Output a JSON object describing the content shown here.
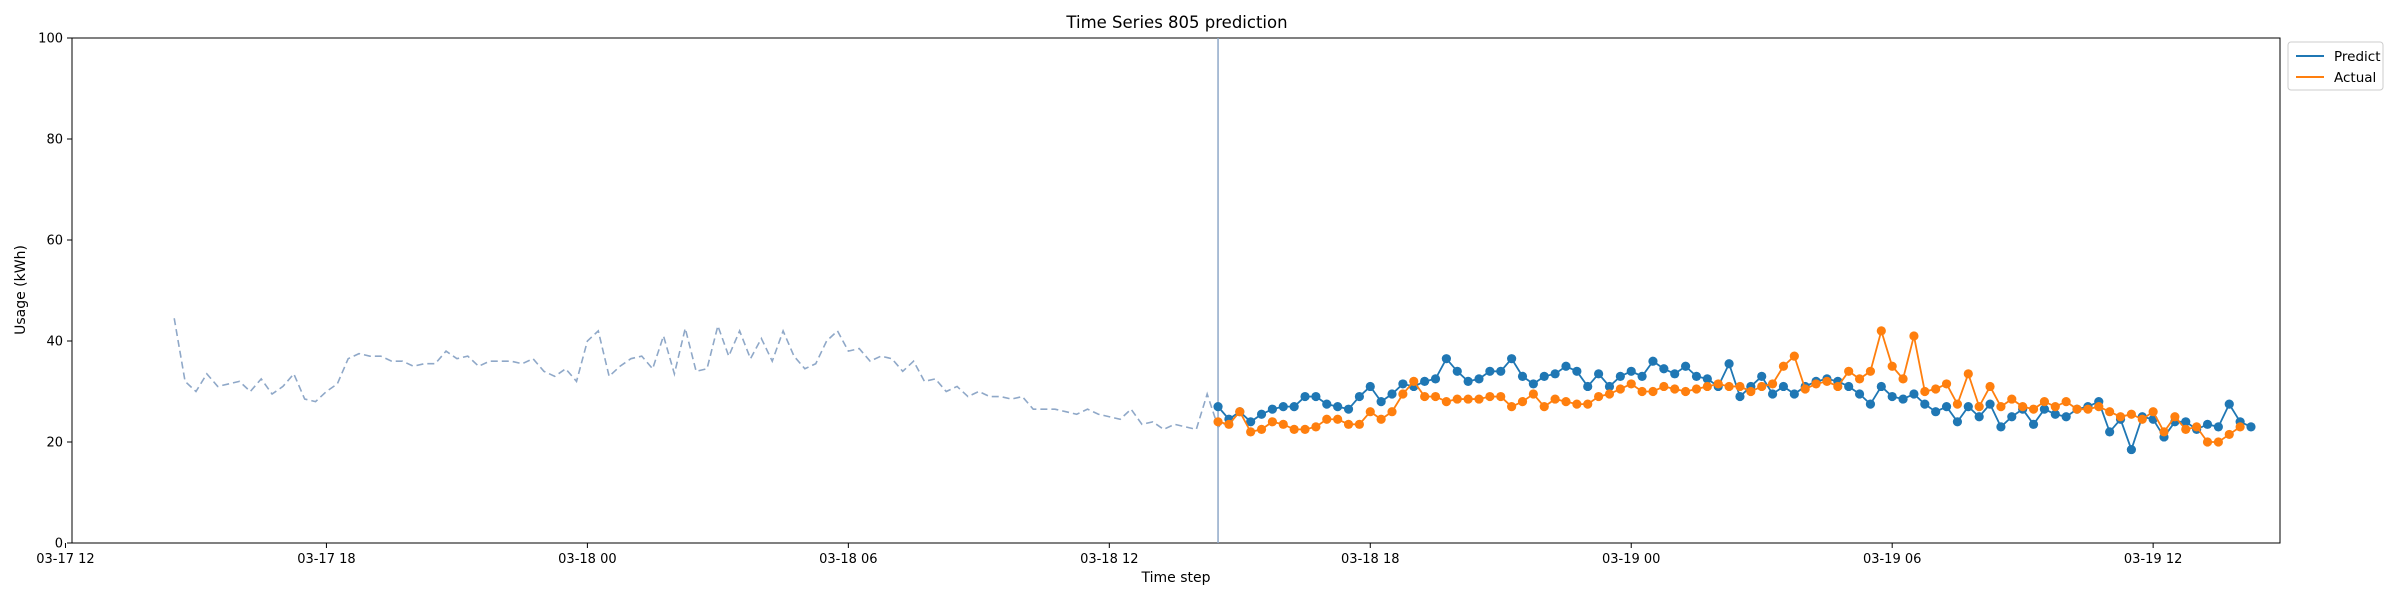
{
  "chart_data": {
    "type": "line",
    "title": "Time Series 805 prediction",
    "xlabel": "Time step",
    "ylabel": "Usage (kWh)",
    "ylim": [
      0,
      100
    ],
    "yticks": [
      0,
      20,
      40,
      60,
      80,
      100
    ],
    "xlim": [
      "2024-03-17 12:09",
      "2024-03-19 14:55"
    ],
    "xticks": [
      {
        "t": "2024-03-17 12:00",
        "label": "03-17 12"
      },
      {
        "t": "2024-03-17 18:00",
        "label": "03-17 18"
      },
      {
        "t": "2024-03-18 00:00",
        "label": "03-18 00"
      },
      {
        "t": "2024-03-18 06:00",
        "label": "03-18 06"
      },
      {
        "t": "2024-03-18 12:00",
        "label": "03-18 12"
      },
      {
        "t": "2024-03-18 18:00",
        "label": "03-18 18"
      },
      {
        "t": "2024-03-19 00:00",
        "label": "03-19 00"
      },
      {
        "t": "2024-03-19 06:00",
        "label": "03-19 06"
      },
      {
        "t": "2024-03-19 12:00",
        "label": "03-19 12"
      }
    ],
    "grid": false,
    "legend_position": "outside-top-right",
    "forecast_start": "2024-03-18 14:30",
    "series": [
      {
        "name": "",
        "style": "dashed",
        "color": "#8fa8c8",
        "start": "2024-03-17 14:30",
        "step_minutes": 15,
        "values": [
          44.5,
          32,
          30,
          33.5,
          31,
          31.5,
          32,
          30,
          32.5,
          29.5,
          31,
          33.5,
          28.5,
          28,
          30,
          31.5,
          36.5,
          37.5,
          37,
          37,
          36,
          36,
          35,
          35.5,
          35.5,
          38,
          36.5,
          37,
          35,
          36,
          36,
          36,
          35.5,
          36.5,
          34,
          33,
          34.5,
          32,
          40,
          42,
          33,
          35,
          36.5,
          37,
          34.5,
          41,
          33.5,
          42.5,
          34,
          34.5,
          43,
          37,
          42,
          36.5,
          40.5,
          36,
          42,
          37,
          34.5,
          35.5,
          40,
          42,
          38,
          38.5,
          36,
          37,
          36.5,
          34,
          36,
          32,
          32.5,
          30,
          31,
          29,
          30,
          29,
          29,
          28.5,
          29,
          26.5,
          26.5,
          26.5,
          26,
          25.5,
          26.5,
          25.5,
          25,
          24.5,
          26.5,
          23.5,
          24,
          22.5,
          23.5,
          23,
          22.5,
          29.5,
          23,
          24
        ]
      },
      {
        "name": "Predict",
        "style": "solid-marker",
        "color": "#1f77b4",
        "start": "2024-03-18 14:30",
        "step_minutes": 15,
        "values": [
          27,
          24.5,
          26,
          24,
          25.5,
          26.5,
          27,
          27,
          29,
          29,
          27.5,
          27,
          26.5,
          29,
          31,
          28,
          29.5,
          31.5,
          31,
          32,
          32.5,
          36.5,
          34,
          32,
          32.5,
          34,
          34,
          36.5,
          33,
          31.5,
          33,
          33.5,
          35,
          34,
          31,
          33.5,
          31,
          33,
          34,
          33,
          36,
          34.5,
          33.5,
          35,
          33,
          32.5,
          31,
          35.5,
          29,
          31,
          33,
          29.5,
          31,
          29.5,
          31,
          32,
          32.5,
          32,
          31,
          29.5,
          27.5,
          31,
          29,
          28.5,
          29.5,
          27.5,
          26,
          27,
          24,
          27,
          25,
          27.5,
          23,
          25,
          26.5,
          23.5,
          26.5,
          25.5,
          25,
          26.5,
          27,
          28,
          22,
          24.5,
          18.5,
          25,
          24.5,
          21,
          24,
          24,
          22.5,
          23.5,
          23,
          27.5,
          24,
          23
        ]
      },
      {
        "name": "Actual",
        "style": "solid-marker",
        "color": "#ff7f0e",
        "start": "2024-03-18 14:30",
        "step_minutes": 15,
        "values": [
          24,
          23.5,
          26,
          22,
          22.5,
          24,
          23.5,
          22.5,
          22.5,
          23,
          24.5,
          24.5,
          23.5,
          23.5,
          26,
          24.5,
          26,
          29.5,
          32,
          29,
          29,
          28,
          28.5,
          28.5,
          28.5,
          29,
          29,
          27,
          28,
          29.5,
          27,
          28.5,
          28,
          27.5,
          27.5,
          29,
          29.5,
          30.5,
          31.5,
          30,
          30,
          31,
          30.5,
          30,
          30.5,
          31,
          31.5,
          31,
          31,
          30,
          31,
          31.5,
          35,
          37,
          30.5,
          31.5,
          32,
          31,
          34,
          32.5,
          34,
          42,
          35,
          32.5,
          41,
          30,
          30.5,
          31.5,
          27.5,
          33.5,
          27,
          31,
          27,
          28.5,
          27,
          26.5,
          28,
          27,
          28,
          26.5,
          26.5,
          27,
          26,
          25,
          25.5,
          24.5,
          26,
          22,
          25,
          22.5,
          23,
          20,
          20,
          21.5,
          23
        ]
      }
    ]
  }
}
